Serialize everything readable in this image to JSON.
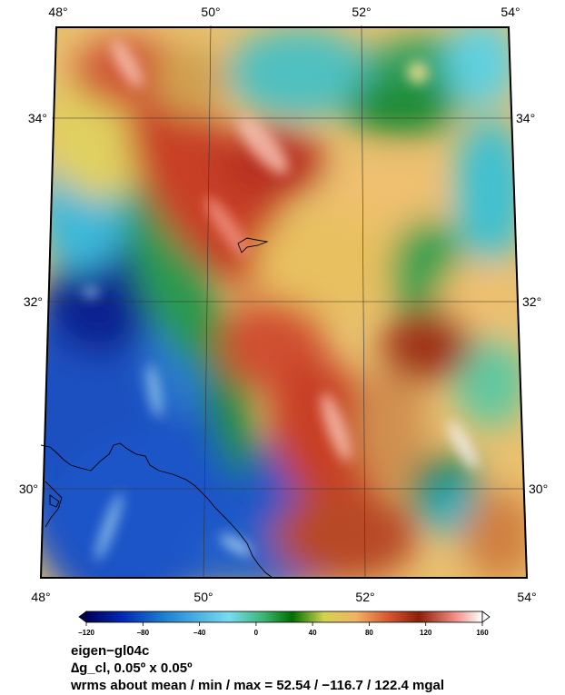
{
  "map": {
    "lon_ticks": [
      "48°",
      "50°",
      "52°",
      "54°"
    ],
    "lat_ticks": [
      "34°",
      "32°",
      "30°"
    ],
    "lon_range": [
      48,
      54
    ],
    "lat_range": [
      29,
      35
    ]
  },
  "colorbar": {
    "ticks": [
      "−120",
      "−80",
      "−40",
      "0",
      "40",
      "80",
      "120",
      "160"
    ],
    "range": [
      -120,
      160
    ],
    "colors": [
      "#00005a",
      "#0028b4",
      "#1e82d2",
      "#78dcf0",
      "#3cb46e",
      "#006e00",
      "#d2d250",
      "#f0b464",
      "#d2502d",
      "#8c1e0a",
      "#f08c82",
      "#ffffff"
    ]
  },
  "caption": {
    "line1": "eigen−gl04c",
    "line2": "∆g_cl, 0.05º x 0.05º",
    "line3": "wrms about mean / min / max = 52.54 / −116.7 / 122.4 mgal"
  }
}
